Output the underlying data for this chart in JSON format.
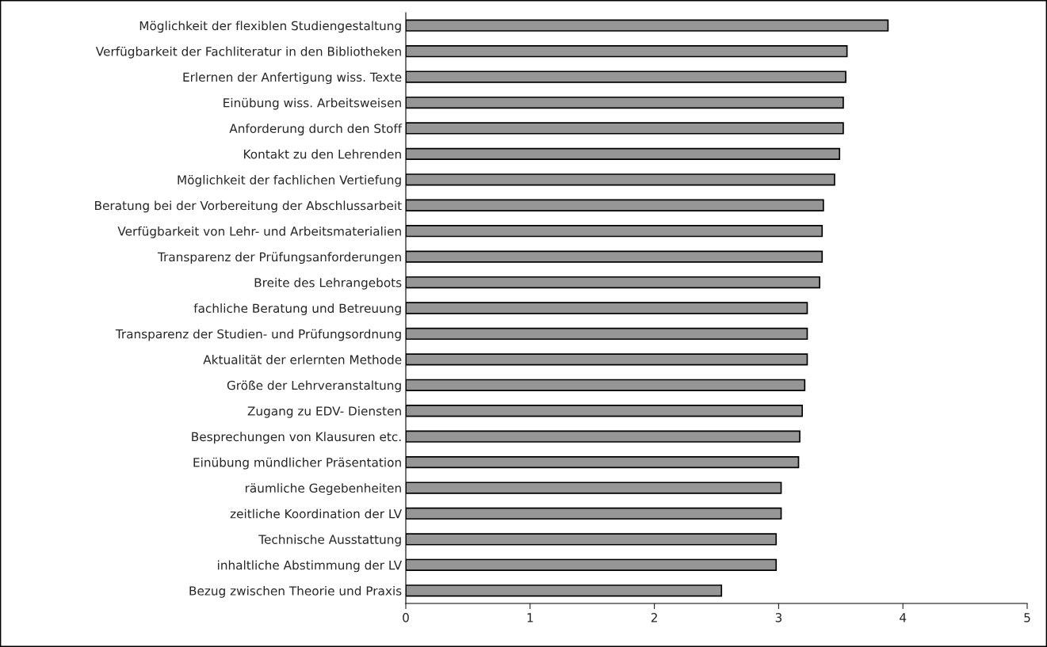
{
  "chart_data": {
    "type": "bar",
    "orientation": "horizontal",
    "categories": [
      "Möglichkeit der flexiblen Studiengestaltung",
      "Verfügbarkeit der Fachliteratur in den Bibliotheken",
      "Erlernen der Anfertigung wiss. Texte",
      "Einübung wiss. Arbeitsweisen",
      "Anforderung durch den Stoff",
      "Kontakt zu den Lehrenden",
      "Möglichkeit der fachlichen Vertiefung",
      "Beratung bei der Vorbereitung der Abschlussarbeit",
      "Verfügbarkeit von Lehr- und Arbeitsmaterialien",
      "Transparenz der Prüfungsanforderungen",
      "Breite des Lehrangebots",
      "fachliche Beratung und Betreuung",
      "Transparenz der Studien- und Prüfungsordnung",
      "Aktualität der erlernten Methode",
      "Größe der Lehrveranstaltung",
      "Zugang zu EDV- Diensten",
      "Besprechungen von Klausuren etc.",
      "Einübung mündlicher Präsentation",
      "räumliche Gegebenheiten",
      "zeitliche Koordination der LV",
      "Technische Ausstattung",
      "inhaltliche Abstimmung der LV",
      "Bezug zwischen Theorie und Praxis"
    ],
    "values": [
      3.88,
      3.55,
      3.54,
      3.52,
      3.52,
      3.49,
      3.45,
      3.36,
      3.35,
      3.35,
      3.33,
      3.23,
      3.23,
      3.23,
      3.21,
      3.19,
      3.17,
      3.16,
      3.02,
      3.02,
      2.98,
      2.98,
      2.54
    ],
    "color": "#969696",
    "xlim": [
      0,
      5
    ],
    "xticks": [
      0,
      1,
      2,
      3,
      4,
      5
    ],
    "grid": false
  }
}
